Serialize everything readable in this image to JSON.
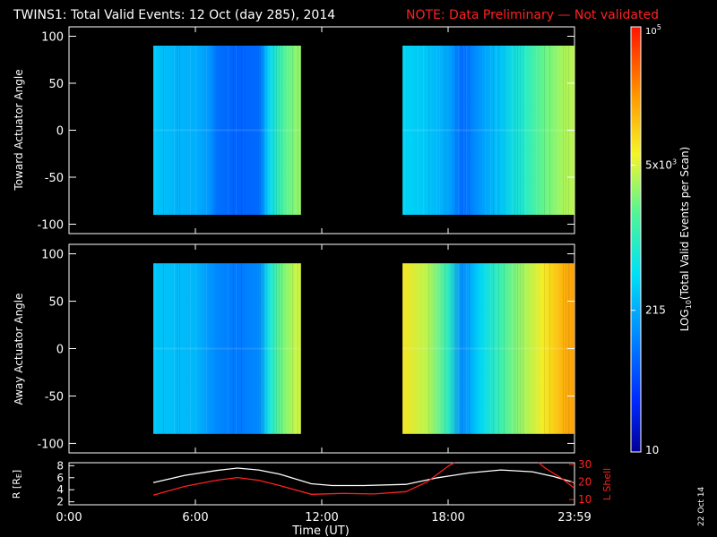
{
  "title": {
    "main": "TWINS1: Total Valid Events: 12 Oct (day 285), 2014",
    "note": "NOTE: Data Preliminary — Not validated",
    "note_color": "#ff2020"
  },
  "date_stamp": "22 Oct 14",
  "chart_data": [
    {
      "type": "heatmap",
      "ylabel": "Toward Actuator Angle",
      "ylim": [
        -110,
        110
      ],
      "yticks": [
        100,
        50,
        0,
        -50,
        -100
      ],
      "xlim_hours": [
        0,
        24
      ],
      "angle_range": [
        -90,
        90
      ],
      "segments": [
        {
          "start": "04:00",
          "end": "11:00",
          "profile": [
            {
              "t": "04:00",
              "log10": 2.5
            },
            {
              "t": "05:00",
              "log10": 2.4
            },
            {
              "t": "06:00",
              "log10": 2.35
            },
            {
              "t": "06:40",
              "log10": 2.2
            },
            {
              "t": "07:00",
              "log10": 1.95
            },
            {
              "t": "08:00",
              "log10": 1.85
            },
            {
              "t": "09:00",
              "log10": 1.9
            },
            {
              "t": "09:30",
              "log10": 2.6
            },
            {
              "t": "10:00",
              "log10": 3.1
            },
            {
              "t": "10:40",
              "log10": 3.4
            },
            {
              "t": "11:00",
              "log10": 3.5
            }
          ]
        },
        {
          "start": "15:50",
          "end": "23:59",
          "profile": [
            {
              "t": "15:50",
              "log10": 2.6
            },
            {
              "t": "17:00",
              "log10": 2.5
            },
            {
              "t": "18:00",
              "log10": 2.3
            },
            {
              "t": "18:40",
              "log10": 1.9
            },
            {
              "t": "19:30",
              "log10": 2.2
            },
            {
              "t": "20:30",
              "log10": 2.5
            },
            {
              "t": "21:30",
              "log10": 2.9
            },
            {
              "t": "22:30",
              "log10": 3.3
            },
            {
              "t": "23:30",
              "log10": 3.55
            },
            {
              "t": "23:59",
              "log10": 3.6
            }
          ]
        }
      ]
    },
    {
      "type": "heatmap",
      "ylabel": "Away Actuator Angle",
      "ylim": [
        -110,
        110
      ],
      "yticks": [
        100,
        50,
        0,
        -50,
        -100
      ],
      "xlim_hours": [
        0,
        24
      ],
      "angle_range": [
        -90,
        90
      ],
      "segments": [
        {
          "start": "04:00",
          "end": "11:00",
          "profile": [
            {
              "t": "04:00",
              "log10": 2.5
            },
            {
              "t": "05:00",
              "log10": 2.45
            },
            {
              "t": "06:00",
              "log10": 2.4
            },
            {
              "t": "06:40",
              "log10": 2.2
            },
            {
              "t": "07:00",
              "log10": 2.1
            },
            {
              "t": "08:00",
              "log10": 2.0
            },
            {
              "t": "09:00",
              "log10": 2.1
            },
            {
              "t": "09:30",
              "log10": 2.8
            },
            {
              "t": "10:00",
              "log10": 3.3
            },
            {
              "t": "10:40",
              "log10": 3.6
            },
            {
              "t": "11:00",
              "log10": 3.7
            }
          ]
        },
        {
          "start": "15:50",
          "end": "23:59",
          "profile": [
            {
              "t": "15:50",
              "log10": 3.9
            },
            {
              "t": "17:00",
              "log10": 3.6
            },
            {
              "t": "18:00",
              "log10": 3.0
            },
            {
              "t": "18:40",
              "log10": 2.1
            },
            {
              "t": "19:30",
              "log10": 2.6
            },
            {
              "t": "20:30",
              "log10": 3.1
            },
            {
              "t": "21:30",
              "log10": 3.5
            },
            {
              "t": "22:30",
              "log10": 3.85
            },
            {
              "t": "23:30",
              "log10": 4.2
            },
            {
              "t": "23:59",
              "log10": 4.3
            }
          ]
        }
      ]
    },
    {
      "type": "line",
      "ylabel_left": "R [R",
      "ylabel_left_sub": "E",
      "ylabel_left_end": "]",
      "ylabel_right": "L Shell",
      "ylim_left": [
        1.5,
        8.5
      ],
      "yticks_left": [
        8,
        6,
        4,
        2
      ],
      "ylim_right": [
        7,
        31
      ],
      "yticks_right": [
        30,
        20,
        10
      ],
      "xlabel": "Time (UT)",
      "xticks": [
        "0:00",
        "6:00",
        "12:00",
        "18:00",
        "23:59"
      ],
      "xtick_hours": [
        0,
        6,
        12,
        18,
        24
      ],
      "series": [
        {
          "color": "#ffffff",
          "axis": "left",
          "points": [
            [
              4.0,
              5.2
            ],
            [
              5.5,
              6.4
            ],
            [
              7.0,
              7.2
            ],
            [
              8.0,
              7.6
            ],
            [
              9.0,
              7.3
            ],
            [
              10.0,
              6.6
            ],
            [
              11.5,
              5.0
            ],
            [
              12.5,
              4.7
            ],
            [
              14.0,
              4.7
            ],
            [
              16.0,
              4.9
            ],
            [
              17.5,
              6.0
            ],
            [
              19.0,
              6.8
            ],
            [
              20.5,
              7.3
            ],
            [
              22.0,
              7.0
            ],
            [
              23.0,
              6.2
            ],
            [
              23.99,
              5.2
            ]
          ]
        },
        {
          "color": "#ff2020",
          "axis": "right",
          "points": [
            [
              4.0,
              12.5
            ],
            [
              5.5,
              17.5
            ],
            [
              7.0,
              21.0
            ],
            [
              8.0,
              22.5
            ],
            [
              9.0,
              21.0
            ],
            [
              10.0,
              18.0
            ],
            [
              11.5,
              13.0
            ],
            [
              13.0,
              13.5
            ],
            [
              14.5,
              13.2
            ],
            [
              16.0,
              14.5
            ],
            [
              17.0,
              20.0
            ],
            [
              18.0,
              29.0
            ],
            [
              18.3,
              31.0
            ]
          ]
        },
        {
          "color": "#ff2020",
          "axis": "right",
          "points": [
            [
              22.3,
              31.0
            ],
            [
              22.6,
              28.0
            ],
            [
              23.4,
              22.0
            ],
            [
              23.99,
              16.5
            ]
          ]
        }
      ]
    }
  ],
  "colorbar": {
    "label_pre": "LOG",
    "label_sub": "10",
    "label_post": "(Total Valid Events per Scan)",
    "min_log10": 1.0,
    "max_log10": 5.0,
    "ticks": [
      {
        "label": "10",
        "log10": 1.0
      },
      {
        "label": "215",
        "log10": 2.333
      },
      {
        "label": "5x10",
        "sup": "3",
        "log10": 3.699
      },
      {
        "label": "10",
        "sup": "5",
        "log10": 5.0
      }
    ]
  }
}
